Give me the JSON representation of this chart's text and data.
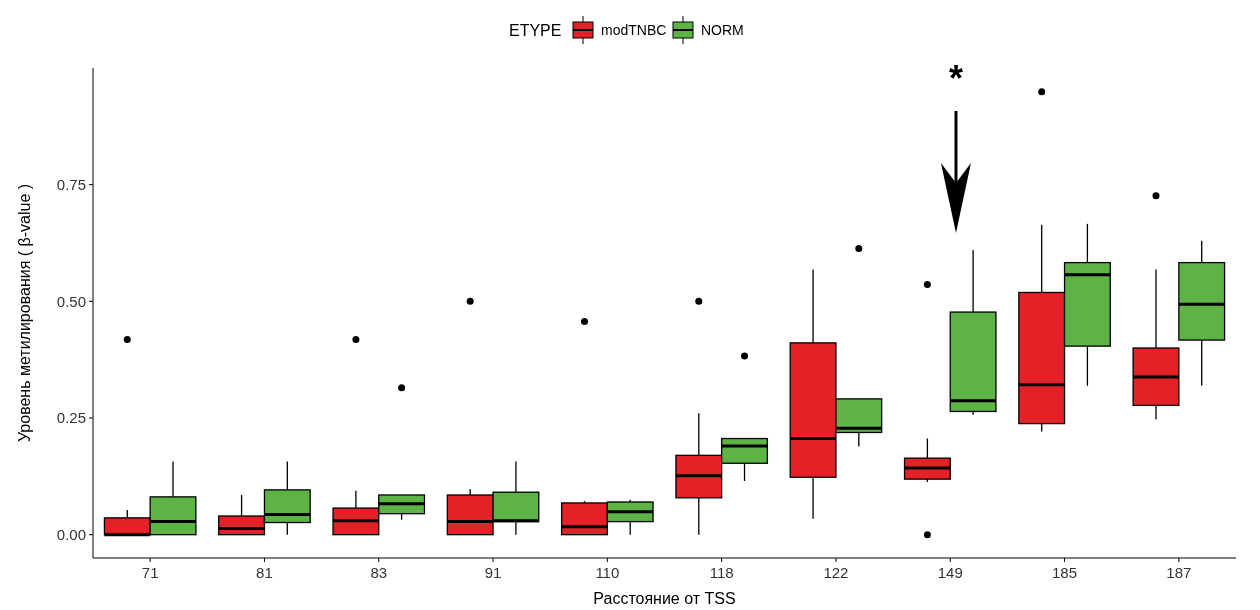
{
  "chart_data": {
    "type": "box",
    "xlabel": "Расстояние от TSS",
    "ylabel": "Уровень метилирования ( β-value )",
    "legend_title": "ETYPE",
    "legend": "top",
    "grid": false,
    "categories": [
      "71",
      "81",
      "83",
      "91",
      "110",
      "118",
      "122",
      "149",
      "185",
      "187"
    ],
    "ylim": [
      -0.05,
      1.0
    ],
    "yticks": [
      {
        "value": 0,
        "label": "0.00"
      },
      {
        "value": 0.25,
        "label": "0.25"
      },
      {
        "value": 0.5,
        "label": "0.50"
      },
      {
        "value": 0.75,
        "label": "0.75"
      }
    ],
    "annotations": [
      "*"
    ],
    "series": [
      {
        "name": "modTNBC",
        "color": "#e32227",
        "boxes": [
          {
            "low": 0,
            "q1": 0,
            "median": 0,
            "q3": 0.036,
            "high": 0.053,
            "outliers": [
              0.418
            ]
          },
          {
            "low": 0,
            "q1": 0,
            "median": 0.013,
            "q3": 0.04,
            "high": 0.085
          },
          {
            "low": 0,
            "q1": 0,
            "median": 0.03,
            "q3": 0.057,
            "high": 0.094,
            "outliers": [
              0.418
            ]
          },
          {
            "low": 0,
            "q1": 0,
            "median": 0.028,
            "q3": 0.085,
            "high": 0.098,
            "outliers": [
              0.5
            ]
          },
          {
            "low": 0,
            "q1": 0,
            "median": 0.017,
            "q3": 0.068,
            "high": 0.072,
            "outliers": [
              0.457
            ]
          },
          {
            "low": 0,
            "q1": 0.079,
            "median": 0.126,
            "q3": 0.17,
            "high": 0.26,
            "outliers": [
              0.5
            ]
          },
          {
            "low": 0.034,
            "q1": 0.123,
            "median": 0.206,
            "q3": 0.411,
            "high": 0.568
          },
          {
            "low": 0.113,
            "q1": 0.119,
            "median": 0.143,
            "q3": 0.164,
            "high": 0.206,
            "outliers": [
              0.536,
              0
            ]
          },
          {
            "low": 0.221,
            "q1": 0.238,
            "median": 0.321,
            "q3": 0.519,
            "high": 0.664,
            "outliers": [
              0.949
            ]
          },
          {
            "low": 0.247,
            "q1": 0.277,
            "median": 0.338,
            "q3": 0.4,
            "high": 0.568,
            "outliers": [
              0.726
            ]
          }
        ]
      },
      {
        "name": "NORM",
        "color": "#5db346",
        "boxes": [
          {
            "low": 0,
            "q1": 0,
            "median": 0.028,
            "q3": 0.081,
            "high": 0.157
          },
          {
            "low": 0,
            "q1": 0.026,
            "median": 0.043,
            "q3": 0.096,
            "high": 0.157
          },
          {
            "low": 0.032,
            "q1": 0.045,
            "median": 0.066,
            "q3": 0.085,
            "high": 0.085,
            "outliers": [
              0.315
            ]
          },
          {
            "low": 0,
            "q1": 0.028,
            "median": 0.03,
            "q3": 0.091,
            "high": 0.157
          },
          {
            "low": 0,
            "q1": 0.028,
            "median": 0.049,
            "q3": 0.07,
            "high": 0.075
          },
          {
            "low": 0.115,
            "q1": 0.153,
            "median": 0.19,
            "q3": 0.206,
            "high": 0.206,
            "outliers": [
              0.383
            ]
          },
          {
            "low": 0.189,
            "q1": 0.219,
            "median": 0.228,
            "q3": 0.291,
            "high": 0.291,
            "outliers": [
              0.613
            ]
          },
          {
            "low": 0.257,
            "q1": 0.264,
            "median": 0.287,
            "q3": 0.477,
            "high": 0.61
          },
          {
            "low": 0.319,
            "q1": 0.404,
            "median": 0.557,
            "q3": 0.583,
            "high": 0.666
          },
          {
            "low": 0.319,
            "q1": 0.417,
            "median": 0.494,
            "q3": 0.583,
            "high": 0.63
          }
        ]
      }
    ]
  }
}
